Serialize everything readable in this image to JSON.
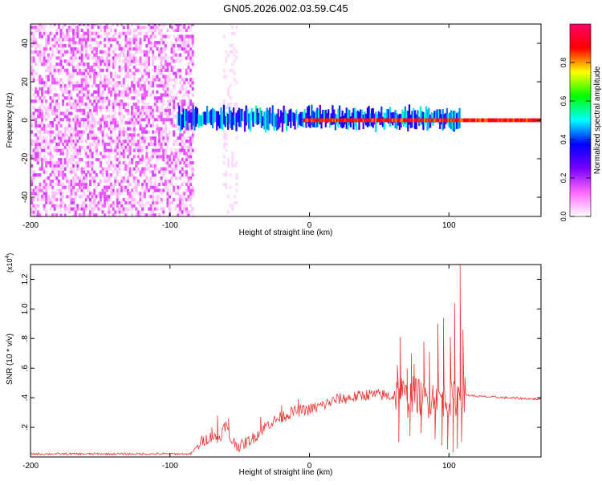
{
  "title": "GN05.2026.002.03.59.C45",
  "chart_data": [
    {
      "type": "heatmap",
      "xlabel": "Height of straight line (km)",
      "ylabel": "Frequency (Hz)",
      "xlim": [
        -200,
        166
      ],
      "ylim": [
        -50,
        50
      ],
      "xticks": [
        -200,
        -100,
        0,
        100
      ],
      "yticks": [
        -40,
        -20,
        0,
        20,
        40
      ],
      "colorbar": {
        "label": "Normalized spectral amplitude",
        "range": [
          0,
          1
        ],
        "ticks": [
          "0.0",
          "0.2",
          "0.4",
          "0.6",
          "0.8"
        ],
        "stops": [
          "#ffffff",
          "#ff66ff",
          "#7700ff",
          "#0000ff",
          "#00ffff",
          "#00ff00",
          "#ffff00",
          "#ff0000",
          "#ff0066"
        ]
      },
      "regions": [
        {
          "x_from": -200,
          "x_to": -83,
          "freq_from": -50,
          "freq_to": 50,
          "amplitude": 0.05,
          "pattern": "random noise"
        },
        {
          "x_from": -62,
          "x_to": -52,
          "freq_from": -50,
          "freq_to": 50,
          "amplitude": 0.02,
          "pattern": "faint column"
        },
        {
          "x_from": -95,
          "x_to": 108,
          "freq_center": 1,
          "freq_halfwidth": 4,
          "amplitude": 0.45,
          "pattern": "signal band"
        },
        {
          "x_from": -5,
          "x_to": 166,
          "freq_center": 0,
          "freq_halfwidth": 1,
          "amplitude": 0.95,
          "pattern": "narrow carrier"
        }
      ]
    },
    {
      "type": "line",
      "xlabel": "Height of straight line (km)",
      "ylabel": "SNR (10 * v/v)",
      "yscale_label": "(x10",
      "yscale_exponent": "4",
      "xlim": [
        -200,
        166
      ],
      "ylim": [
        0,
        1.3
      ],
      "xticks": [
        -200,
        -100,
        0,
        100
      ],
      "yticks": [
        0.2,
        0.4,
        0.6,
        0.8,
        1.0,
        1.2
      ],
      "color": "#ee3333",
      "series": [
        {
          "points": [
            [
              -200,
              0.02
            ],
            [
              -150,
              0.02
            ],
            [
              -100,
              0.02
            ],
            [
              -85,
              0.02
            ],
            [
              -78,
              0.1
            ],
            [
              -70,
              0.14
            ],
            [
              -65,
              0.12
            ],
            [
              -60,
              0.22
            ],
            [
              -57,
              0.12
            ],
            [
              -50,
              0.07
            ],
            [
              -40,
              0.13
            ],
            [
              -30,
              0.22
            ],
            [
              -20,
              0.27
            ],
            [
              -10,
              0.31
            ],
            [
              0,
              0.32
            ],
            [
              10,
              0.35
            ],
            [
              20,
              0.39
            ],
            [
              30,
              0.4
            ],
            [
              40,
              0.42
            ],
            [
              50,
              0.42
            ],
            [
              60,
              0.41
            ],
            [
              65,
              0.45
            ],
            [
              70,
              0.38
            ],
            [
              75,
              0.43
            ],
            [
              80,
              0.4
            ],
            [
              85,
              0.38
            ],
            [
              90,
              0.42
            ],
            [
              95,
              0.4
            ],
            [
              100,
              0.38
            ],
            [
              105,
              0.4
            ],
            [
              108,
              0.45
            ],
            [
              112,
              0.42
            ],
            [
              120,
              0.41
            ],
            [
              140,
              0.4
            ],
            [
              166,
              0.39
            ]
          ],
          "spikes": [
            [
              -70,
              0.2
            ],
            [
              -66,
              0.28
            ],
            [
              -58,
              0.26
            ],
            [
              -35,
              0.27
            ],
            [
              -20,
              0.35
            ],
            [
              -8,
              0.39
            ],
            [
              63,
              0.62
            ],
            [
              65,
              0.81
            ],
            [
              70,
              0.6
            ],
            [
              73,
              0.7
            ],
            [
              75,
              0.63
            ],
            [
              82,
              0.78
            ],
            [
              86,
              0.71
            ],
            [
              92,
              0.9
            ],
            [
              96,
              0.94
            ],
            [
              101,
              0.81
            ],
            [
              104,
              1.04
            ],
            [
              108,
              1.3
            ],
            [
              110,
              0.86
            ]
          ],
          "dips": [
            [
              64,
              0.1
            ],
            [
              72,
              0.14
            ],
            [
              80,
              0.16
            ],
            [
              90,
              0.12
            ],
            [
              95,
              0.08
            ],
            [
              99,
              0.05
            ],
            [
              103,
              0.03
            ],
            [
              106,
              0.06
            ],
            [
              109,
              0.1
            ]
          ]
        }
      ]
    }
  ]
}
